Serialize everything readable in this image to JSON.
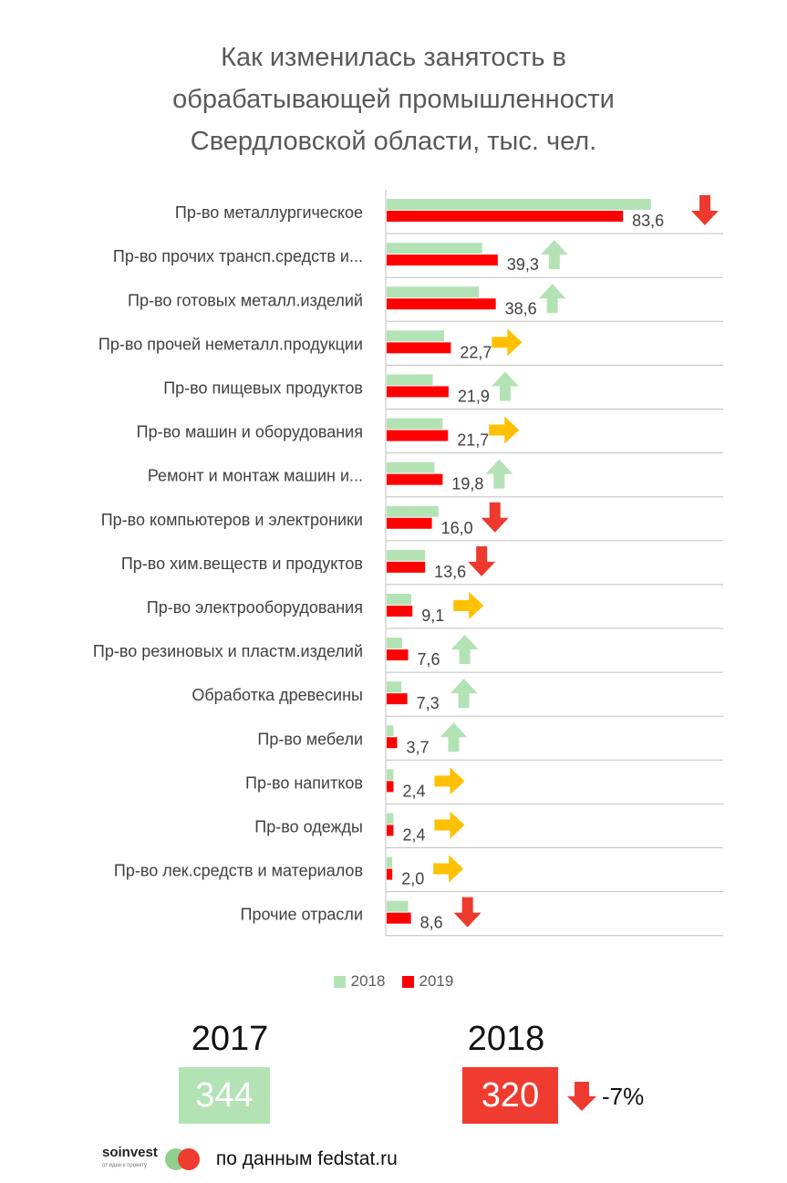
{
  "title": {
    "line1": "Как изменилась занятость в",
    "line2": "обрабатывающей промышленности",
    "line3": "Свердловской области, тыс. чел."
  },
  "colors": {
    "series2018": "#b3e3b5",
    "series2019": "#ff0000",
    "arrow_up": "#b3e3b5",
    "arrow_down": "#ee3a2e",
    "arrow_right": "#ffc000",
    "box2017": "#b3e3b5",
    "box2018": "#ef3b30",
    "gridline": "#bfbfbf"
  },
  "chart_data": {
    "type": "bar",
    "orientation": "horizontal",
    "title": "Как изменилась занятость в обрабатывающей промышленности Свердловской области, тыс. чел.",
    "xlim": [
      0,
      130
    ],
    "categories": [
      "Пр-во металлургическое",
      "Пр-во прочих трансп.средств и...",
      "Пр-во готовых металл.изделий",
      "Пр-во прочей неметалл.продукции",
      "Пр-во пищевых продуктов",
      "Пр-во машин и оборудования",
      "Ремонт и монтаж машин и...",
      "Пр-во компьютеров и электроники",
      "Пр-во хим.веществ и продуктов",
      "Пр-во электрооборудования",
      "Пр-во резиновых и пластм.изделий",
      "Обработка древесины",
      "Пр-во мебели",
      "Пр-во напитков",
      "Пр-во одежды",
      "Пр-во лек.средств и материалов",
      "Прочие отрасли"
    ],
    "series": [
      {
        "name": "2018",
        "values": [
          93.5,
          33.8,
          32.6,
          20.3,
          16.3,
          19.8,
          16.9,
          18.3,
          13.6,
          8.7,
          5.5,
          5.2,
          2.4,
          2.4,
          2.4,
          2.0,
          7.6
        ]
      },
      {
        "name": "2019",
        "values": [
          83.6,
          39.3,
          38.6,
          22.7,
          21.9,
          21.7,
          19.8,
          16.0,
          13.6,
          9.1,
          7.6,
          7.3,
          3.7,
          2.4,
          2.4,
          2.0,
          8.6
        ]
      }
    ],
    "value_labels": [
      "83,6",
      "39,3",
      "38,6",
      "22,7",
      "21,9",
      "21,7",
      "19,8",
      "16,0",
      "13,6",
      "9,1",
      "7,6",
      "7,3",
      "3,7",
      "2,4",
      "2,4",
      "2,0",
      "8,6"
    ],
    "trend": [
      "down",
      "up",
      "up",
      "right",
      "up",
      "right",
      "up",
      "down",
      "down",
      "right",
      "up",
      "up",
      "up",
      "right",
      "right",
      "right",
      "down"
    ],
    "legend": [
      "2018",
      "2019"
    ],
    "legend_position": "bottom"
  },
  "summary": {
    "year1": "2017",
    "value1": "344",
    "year2": "2018",
    "value2": "320",
    "change": "-7%"
  },
  "footer": {
    "brand_name": "soinvest",
    "brand_tagline": "от идеи к проекту",
    "source": "по данным fedstat.ru"
  }
}
